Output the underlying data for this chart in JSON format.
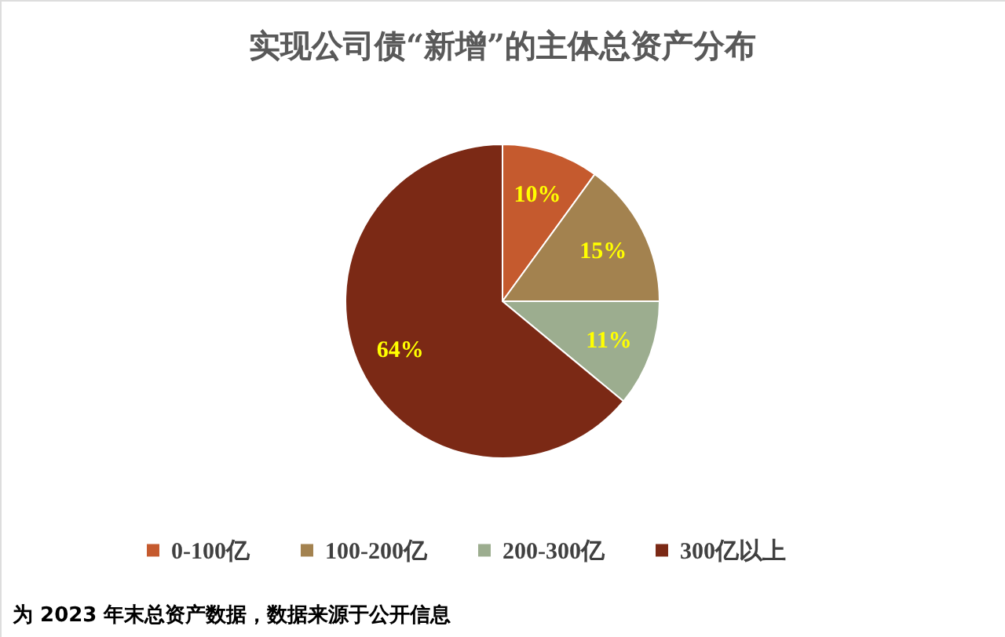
{
  "chart_data": {
    "type": "pie",
    "title": "实现公司债“新增”的主体总资产分布",
    "categories": [
      "0-100亿",
      "100-200亿",
      "200-300亿",
      "300亿以上"
    ],
    "values": [
      10,
      15,
      11,
      64
    ],
    "colors": [
      "#c55a2e",
      "#a3824f",
      "#9cad8f",
      "#7b2915"
    ],
    "value_labels": [
      "10%",
      "15%",
      "11%",
      "64%"
    ],
    "legend": "bottom",
    "annotations": [
      "为 2023 年末总资产数据，数据来源于公开信息"
    ]
  }
}
